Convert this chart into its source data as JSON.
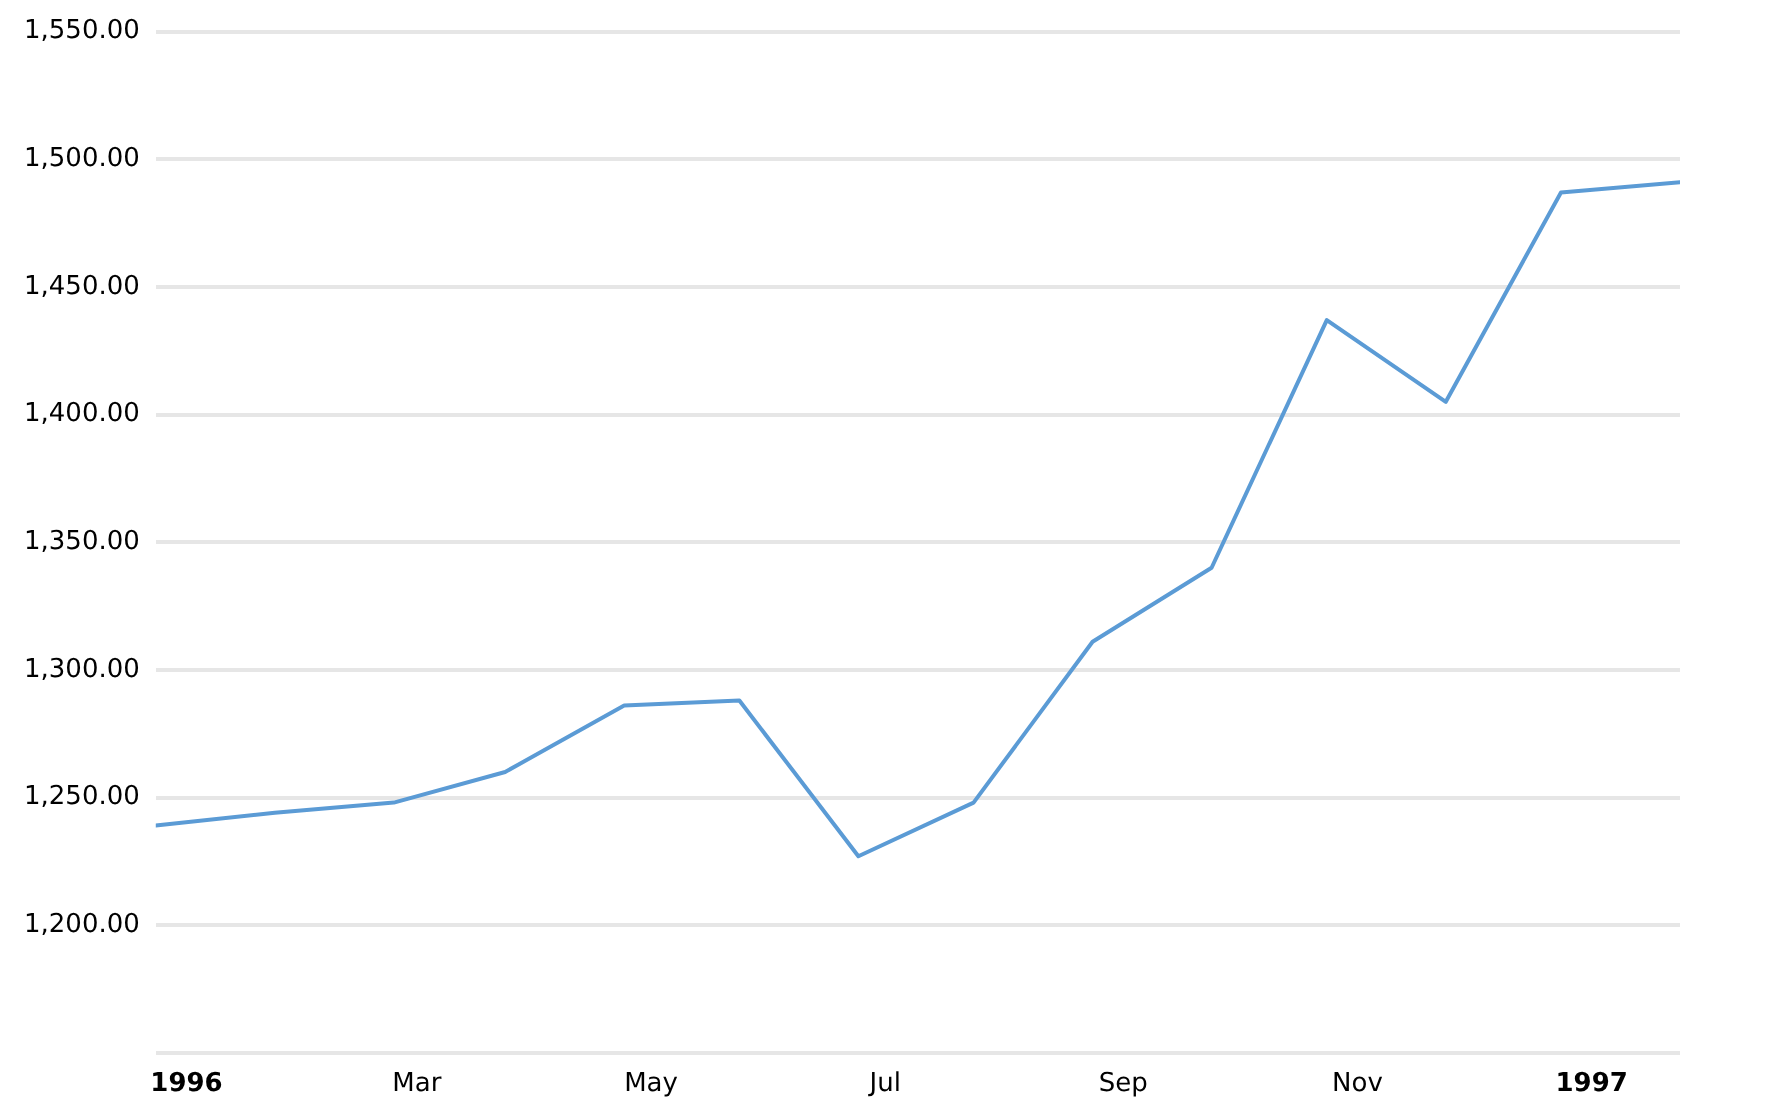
{
  "chart_data": {
    "type": "line",
    "x": [
      "1995-12-24",
      "1996-01-24",
      "1996-02-24",
      "1996-03-24",
      "1996-04-24",
      "1996-05-24",
      "1996-06-24",
      "1996-07-24",
      "1996-08-24",
      "1996-09-24",
      "1996-10-24",
      "1996-11-24",
      "1996-12-24",
      "1997-01-24"
    ],
    "series": [
      {
        "color": "#5b9bd5",
        "values": [
          1239,
          1244,
          1248,
          1260,
          1286,
          1288,
          1227,
          1248,
          1311,
          1340,
          1437,
          1405,
          1487,
          1491
        ]
      }
    ],
    "xlim": [
      "1995-12-24",
      "1997-01-24"
    ],
    "xticks": [
      {
        "value": "1996-01-01",
        "label": "1996"
      },
      {
        "value": "1996-03-01",
        "label": "Mar"
      },
      {
        "value": "1996-05-01",
        "label": "May"
      },
      {
        "value": "1996-07-01",
        "label": "Jul"
      },
      {
        "value": "1996-09-01",
        "label": "Sep"
      },
      {
        "value": "1996-11-01",
        "label": "Nov"
      },
      {
        "value": "1997-01-01",
        "label": "1997"
      }
    ],
    "ylim": [
      1150,
      1550
    ],
    "yticks": [
      {
        "value": 1150,
        "label": null
      },
      {
        "value": 1200,
        "label": "1,200.00"
      },
      {
        "value": 1250,
        "label": "1,250.00"
      },
      {
        "value": 1300,
        "label": "1,300.00"
      },
      {
        "value": 1350,
        "label": "1,350.00"
      },
      {
        "value": 1400,
        "label": "1,400.00"
      },
      {
        "value": 1450,
        "label": "1,450.00"
      },
      {
        "value": 1500,
        "label": "1,500.00"
      },
      {
        "value": 1550,
        "label": "1,550.00"
      }
    ],
    "grid": "y",
    "marker": "none",
    "line_style": "solid",
    "legend": false
  }
}
